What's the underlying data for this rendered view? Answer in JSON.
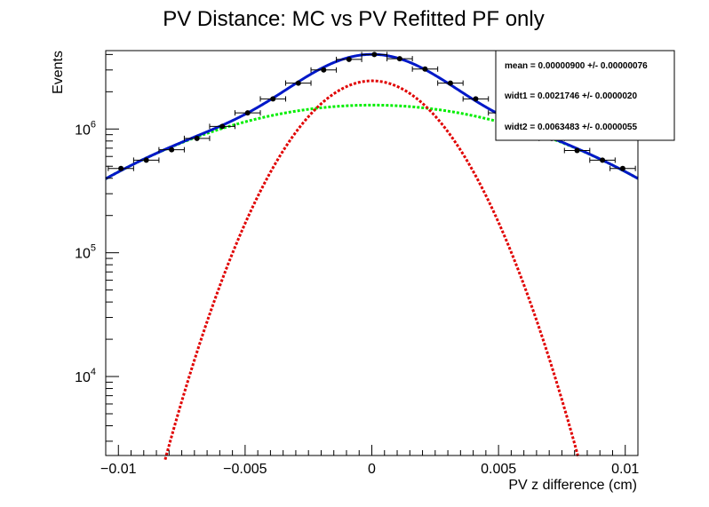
{
  "chart_data": {
    "type": "scatter",
    "title": "PV Distance: MC vs PV Refitted PF only",
    "xlabel": "PV z difference (cm)",
    "ylabel": "Events",
    "xlim": [
      -0.0105,
      0.0105
    ],
    "ylim": [
      2300,
      4300000
    ],
    "yscale": "log",
    "grid": false,
    "legend": "top-right",
    "xticks": [
      "-0.01",
      "-0.005",
      "0",
      "0.005",
      "0.01"
    ],
    "yticks": [
      {
        "value": 10000,
        "base": "10",
        "exp": "4"
      },
      {
        "value": 100000,
        "base": "10",
        "exp": "5"
      },
      {
        "value": 1000000,
        "base": "10",
        "exp": "6"
      }
    ],
    "points": {
      "x": [
        -0.0099,
        -0.0089,
        -0.0079,
        -0.0069,
        -0.0059,
        -0.0049,
        -0.0039,
        -0.0029,
        -0.0019,
        -0.0009,
        0.0001,
        0.0011,
        0.0021,
        0.0031,
        0.0041,
        0.0051,
        0.0061,
        0.0071,
        0.0081,
        0.0091,
        0.0099
      ],
      "y": [
        480000,
        560000,
        680000,
        840000,
        1050000,
        1350000,
        1750000,
        2350000,
        3000000,
        3650000,
        4000000,
        3700000,
        3050000,
        2350000,
        1750000,
        1350000,
        1050000,
        840000,
        670000,
        560000,
        480000
      ],
      "xerr": 0.0005
    },
    "fit": {
      "mean": 9e-06,
      "sigma1": 0.0021746,
      "sigma2": 0.0063483,
      "amp1": 2450000,
      "amp2": 1560000
    },
    "colors": {
      "total": "#0018c8",
      "narrow": "#e00000",
      "wide": "#00ee00",
      "points": "#000000"
    },
    "stats": [
      "mean =  0.00000900 +/- 0.00000076",
      "widt1 =  0.0021746 +/- 0.0000020",
      "widt2 =  0.0063483 +/- 0.0000055"
    ]
  }
}
